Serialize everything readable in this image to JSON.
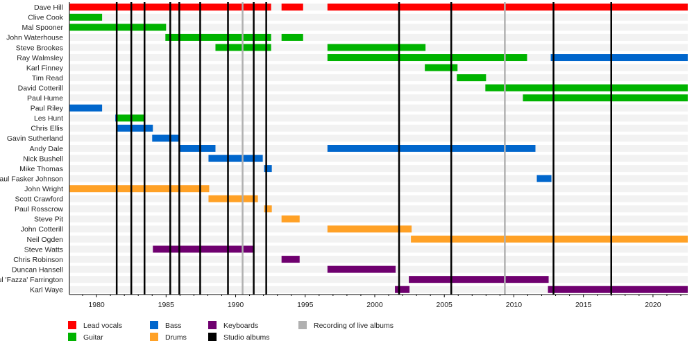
{
  "chart_data": {
    "type": "timeline",
    "xlim": [
      1978.05,
      2022.5
    ],
    "x_ticks": [
      1980,
      1985,
      1990,
      1995,
      2000,
      2005,
      2010,
      2015,
      2020
    ],
    "grid": false,
    "legend_position": "bottom",
    "roles": {
      "vocals": {
        "label": "Lead vocals",
        "color": "#ff0000"
      },
      "guitar": {
        "label": "Guitar",
        "color": "#00b300"
      },
      "bass": {
        "label": "Bass",
        "color": "#0066cc"
      },
      "drums": {
        "label": "Drums",
        "color": "#ffa126"
      },
      "keys": {
        "label": "Keyboards",
        "color": "#6f006f"
      },
      "studio": {
        "label": "Studio albums",
        "color": "#000000"
      },
      "live": {
        "label": "Recording of live albums",
        "color": "#b0b0b0"
      }
    },
    "members": [
      {
        "name": "Dave Hill",
        "spans": [
          [
            "vocals",
            1978.05,
            1992.55
          ],
          [
            "vocals",
            1993.3,
            1994.85
          ],
          [
            "vocals",
            1996.6,
            2022.5
          ]
        ]
      },
      {
        "name": "Clive Cook",
        "spans": [
          [
            "guitar",
            1978.05,
            1980.4
          ]
        ]
      },
      {
        "name": "Mal Spooner",
        "spans": [
          [
            "guitar",
            1978.05,
            1985.0
          ]
        ]
      },
      {
        "name": "John Waterhouse",
        "spans": [
          [
            "guitar",
            1984.95,
            1992.55
          ],
          [
            "guitar",
            1993.3,
            1994.85
          ]
        ]
      },
      {
        "name": "Steve Brookes",
        "spans": [
          [
            "guitar",
            1988.55,
            1992.55
          ],
          [
            "guitar",
            1996.6,
            2003.65
          ]
        ]
      },
      {
        "name": "Ray Walmsley",
        "spans": [
          [
            "guitar",
            1996.6,
            2010.95
          ],
          [
            "bass",
            2012.65,
            2022.5
          ]
        ]
      },
      {
        "name": "Karl Finney",
        "spans": [
          [
            "guitar",
            2003.6,
            2005.95
          ]
        ]
      },
      {
        "name": "Tim Read",
        "spans": [
          [
            "guitar",
            2005.9,
            2008.0
          ]
        ]
      },
      {
        "name": "David Cotterill",
        "spans": [
          [
            "guitar",
            2007.95,
            2022.5
          ]
        ]
      },
      {
        "name": "Paul Hume",
        "spans": [
          [
            "guitar",
            2010.65,
            2022.5
          ]
        ]
      },
      {
        "name": "Paul Riley",
        "spans": [
          [
            "bass",
            1978.05,
            1980.4
          ]
        ]
      },
      {
        "name": "Les Hunt",
        "spans": [
          [
            "bass",
            1981.35,
            1981.5
          ],
          [
            "guitar",
            1981.5,
            1983.45
          ]
        ]
      },
      {
        "name": "Chris Ellis",
        "spans": [
          [
            "bass",
            1981.5,
            1984.05
          ]
        ]
      },
      {
        "name": "Gavin Sutherland",
        "spans": [
          [
            "bass",
            1984.0,
            1986.0
          ]
        ]
      },
      {
        "name": "Andy Dale",
        "spans": [
          [
            "bass",
            1986.0,
            1988.55
          ],
          [
            "bass",
            1996.6,
            2011.55
          ]
        ]
      },
      {
        "name": "Nick Bushell",
        "spans": [
          [
            "bass",
            1988.05,
            1991.95
          ]
        ]
      },
      {
        "name": "Mike Thomas",
        "spans": [
          [
            "bass",
            1992.05,
            1992.6
          ]
        ]
      },
      {
        "name": "Paul Fasker Johnson",
        "spans": [
          [
            "bass",
            2011.65,
            2012.7
          ]
        ]
      },
      {
        "name": "John Wright",
        "spans": [
          [
            "drums",
            1978.05,
            1988.1
          ]
        ]
      },
      {
        "name": "Scott Crawford",
        "spans": [
          [
            "drums",
            1988.05,
            1991.6
          ]
        ]
      },
      {
        "name": "Paul Rosscrow",
        "spans": [
          [
            "drums",
            1992.05,
            1992.6
          ]
        ]
      },
      {
        "name": "Steve Pit",
        "spans": [
          [
            "drums",
            1993.3,
            1994.6
          ]
        ]
      },
      {
        "name": "John Cotterill",
        "spans": [
          [
            "drums",
            1996.6,
            2002.65
          ]
        ]
      },
      {
        "name": "Neil Ogden",
        "spans": [
          [
            "drums",
            2002.6,
            2022.5
          ]
        ]
      },
      {
        "name": "Steve Watts",
        "spans": [
          [
            "keys",
            1984.05,
            1991.35
          ]
        ]
      },
      {
        "name": "Chris Robinson",
        "spans": [
          [
            "keys",
            1993.3,
            1994.6
          ]
        ]
      },
      {
        "name": "Duncan Hansell",
        "spans": [
          [
            "keys",
            1996.6,
            2001.5
          ]
        ]
      },
      {
        "name": "Paul 'Fazza' Farrington",
        "spans": [
          [
            "keys",
            2002.45,
            2012.5
          ]
        ]
      },
      {
        "name": "Karl Waye",
        "spans": [
          [
            "keys",
            2001.45,
            2002.5
          ],
          [
            "keys",
            2012.45,
            2022.5
          ]
        ]
      }
    ],
    "studio_albums": [
      1981.45,
      1982.5,
      1983.45,
      1985.3,
      1985.95,
      1987.45,
      1989.45,
      1991.3,
      1992.2,
      2001.75,
      2005.5,
      2012.85,
      2017.0
    ],
    "live_albums": [
      1990.5,
      2009.35
    ],
    "legend": [
      {
        "key": "vocals",
        "label": "Lead vocals",
        "color": "#ff0000"
      },
      {
        "key": "guitar",
        "label": "Guitar",
        "color": "#00b300"
      },
      {
        "key": "bass",
        "label": "Bass",
        "color": "#0066cc"
      },
      {
        "key": "drums",
        "label": "Drums",
        "color": "#ffa126"
      },
      {
        "key": "keys",
        "label": "Keyboards",
        "color": "#6f006f"
      },
      {
        "key": "studio",
        "label": "Studio albums",
        "color": "#000000"
      },
      {
        "key": "live",
        "label": "Recording of live albums",
        "color": "#b0b0b0"
      }
    ]
  }
}
